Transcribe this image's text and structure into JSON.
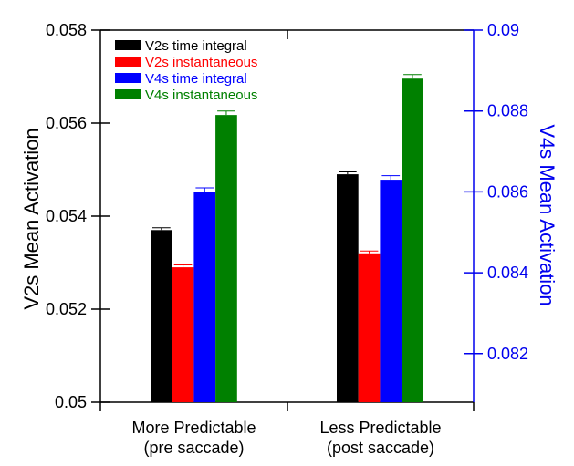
{
  "chart_data": {
    "type": "bar",
    "categories": [
      "More Predictable\n(pre saccade)",
      "Less Predictable\n(post saccade)"
    ],
    "series": [
      {
        "name": "V2s time integral",
        "axis": "left",
        "color": "#000000",
        "values": [
          0.0537,
          0.0549
        ],
        "errors": [
          5e-05,
          5e-05
        ]
      },
      {
        "name": "V2s instantaneous",
        "axis": "left",
        "color": "#ff0000",
        "values": [
          0.0529,
          0.0532
        ],
        "errors": [
          5e-05,
          5e-05
        ]
      },
      {
        "name": "V4s time integral",
        "axis": "right",
        "color": "#0000ff",
        "values": [
          0.086,
          0.0863
        ],
        "errors": [
          0.0001,
          0.0001
        ]
      },
      {
        "name": "V4s instantaneous",
        "axis": "right",
        "color": "#008000",
        "values": [
          0.0879,
          0.0888
        ],
        "errors": [
          0.0001,
          0.0001
        ]
      }
    ],
    "y_left": {
      "label": "V2s Mean Activation",
      "ylim": [
        0.05,
        0.058
      ],
      "ticks": [
        0.05,
        0.052,
        0.054,
        0.056,
        0.058
      ],
      "tick_labels": [
        "0.05",
        "0.052",
        "0.054",
        "0.056",
        "0.058"
      ],
      "color": "#000000"
    },
    "y_right": {
      "label": "V4s Mean Activation",
      "ylim": [
        0.0808,
        0.09
      ],
      "ticks": [
        0.082,
        0.084,
        0.086,
        0.088,
        0.09
      ],
      "tick_labels": [
        "0.082",
        "0.084",
        "0.086",
        "0.088",
        "0.09"
      ],
      "color": "#0000ee"
    },
    "legend_placement": "top-left",
    "grid": false
  }
}
